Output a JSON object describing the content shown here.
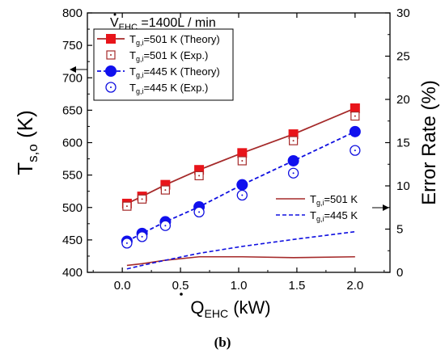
{
  "chart_data": {
    "type": "line",
    "panel_label": "(b)",
    "annotation": {
      "prefix": "V",
      "sub": "EHC",
      "text": "=1400L / min"
    },
    "xlabel": {
      "main": "Q",
      "sub": "EHC",
      "unit": " (kW)"
    },
    "ylabel_left": {
      "main": "T",
      "sub": "s,o",
      "unit": " (K)"
    },
    "ylabel_right": "Error Rate (%)",
    "xlim": [
      -0.3,
      2.3
    ],
    "ylim_left": [
      400,
      800
    ],
    "ylim_right": [
      0,
      30
    ],
    "x_ticks": [
      "0.0",
      "0.5",
      "1.0",
      "1.5",
      "2.0"
    ],
    "y_ticks_left": [
      "400",
      "450",
      "500",
      "550",
      "600",
      "650",
      "700",
      "750",
      "800"
    ],
    "y_ticks_right": [
      "0",
      "5",
      "10",
      "15",
      "20",
      "25",
      "30"
    ],
    "series": [
      {
        "name": "=501 K (Theory)",
        "axis": "left",
        "style": "theory",
        "color": "#a52a2a",
        "marker": "square-filled",
        "marker_color": "#e8141a",
        "x": [
          0.04,
          0.17,
          0.37,
          0.66,
          1.03,
          1.47,
          2.0
        ],
        "y": [
          506,
          517,
          535,
          558,
          584,
          613,
          653
        ]
      },
      {
        "name": "=501 K (Exp.)",
        "axis": "left",
        "style": "exp",
        "color": "#a52a2a",
        "marker": "square-open",
        "x": [
          0.04,
          0.17,
          0.37,
          0.66,
          1.03,
          1.47,
          2.0
        ],
        "y": [
          502,
          513,
          527,
          549,
          572,
          603,
          641
        ]
      },
      {
        "name": "=445 K (Theory)",
        "axis": "left",
        "style": "theory-dashed",
        "color": "#1010e0",
        "marker": "circle-filled",
        "marker_color": "#1010ee",
        "x": [
          0.04,
          0.17,
          0.37,
          0.66,
          1.03,
          1.47,
          2.0
        ],
        "y": [
          448,
          460,
          478,
          501,
          535,
          572,
          617
        ]
      },
      {
        "name": "=445 K (Exp.)",
        "axis": "left",
        "style": "exp",
        "color": "#1010e0",
        "marker": "circle-open",
        "x": [
          0.04,
          0.17,
          0.37,
          0.66,
          1.03,
          1.47,
          2.0
        ],
        "y": [
          445,
          455,
          472,
          493,
          519,
          553,
          588
        ]
      },
      {
        "name": "=501 K",
        "axis": "right",
        "style": "error",
        "color": "#a52a2a",
        "x": [
          0.04,
          0.17,
          0.37,
          0.66,
          1.03,
          1.47,
          2.0
        ],
        "y": [
          0.8,
          1.0,
          1.4,
          1.8,
          1.8,
          1.7,
          1.8
        ]
      },
      {
        "name": "=445 K",
        "axis": "right",
        "style": "error-dashed",
        "color": "#1010e0",
        "x": [
          0.04,
          0.17,
          0.37,
          0.66,
          1.03,
          1.47,
          2.0
        ],
        "y": [
          0.4,
          0.8,
          1.4,
          2.2,
          3.0,
          3.8,
          4.7
        ]
      }
    ],
    "legend_prefix": {
      "main": "T",
      "sub": "g,i"
    },
    "legend_main_position": "top-left",
    "legend_error_position": "bottom-right",
    "grid": false
  }
}
